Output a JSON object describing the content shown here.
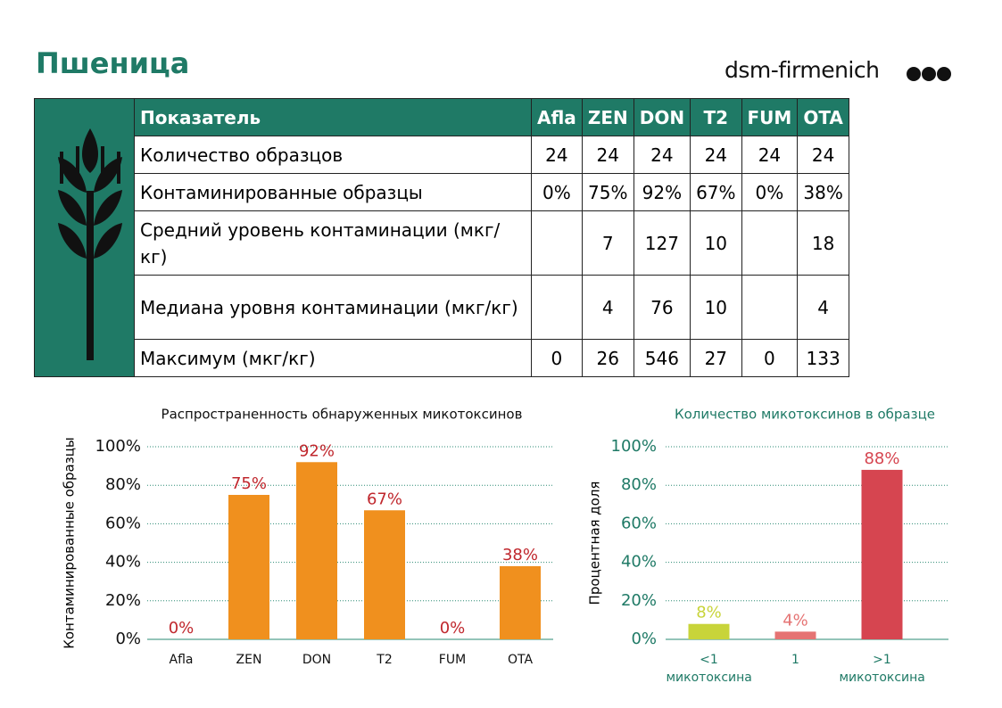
{
  "header": {
    "title": "Пшеница",
    "logo": "dsm-firmenich"
  },
  "table": {
    "header": [
      "Показатель",
      "Afla",
      "ZEN",
      "DON",
      "T2",
      "FUM",
      "OTA"
    ],
    "rows": [
      [
        "Количество образцов",
        "24",
        "24",
        "24",
        "24",
        "24",
        "24"
      ],
      [
        "Контаминированные образцы",
        "0%",
        "75%",
        "92%",
        "67%",
        "0%",
        "38%"
      ],
      [
        "Средний уровень контаминации (мкг/кг)",
        null,
        "7",
        "127",
        "10",
        null,
        "18"
      ],
      [
        "Медиана уровня контаминации (мкг/кг)",
        null,
        "4",
        "76",
        "10",
        null,
        "4"
      ],
      [
        "Максимум (мкг/кг)",
        "0",
        "26",
        "546",
        "27",
        "0",
        "133"
      ]
    ]
  },
  "chart_data": [
    {
      "type": "bar",
      "title": "Распространенность обнаруженных микотоксинов",
      "y_label": "Контаминированные образцы",
      "categories": [
        "Afla",
        "ZEN",
        "DON",
        "T2",
        "FUM",
        "OTA"
      ],
      "values": [
        0,
        75,
        92,
        67,
        0,
        38
      ],
      "value_labels": [
        "0%",
        "75%",
        "92%",
        "67%",
        "0%",
        "38%"
      ],
      "color": "#f0901e",
      "label_color": "#c0272d",
      "ylim": [
        0,
        100
      ],
      "yticks": [
        {
          "value": 0,
          "label": "0%"
        },
        {
          "value": 20,
          "label": "20%"
        },
        {
          "value": 40,
          "label": "40%"
        },
        {
          "value": 60,
          "label": "60%"
        },
        {
          "value": 80,
          "label": "80%"
        },
        {
          "value": 100,
          "label": "100%"
        }
      ],
      "grid": true
    },
    {
      "type": "bar",
      "title": "Количество микотоксинов в образце",
      "y_label": "Процентная доля",
      "categories": [
        "<1 микотоксина",
        "1",
        ">1 микотоксина"
      ],
      "values": [
        8,
        4,
        88
      ],
      "value_labels": [
        "8%",
        "4%",
        "88%"
      ],
      "colors": [
        "#c8d43a",
        "#e57373",
        "#d64550"
      ],
      "ylim": [
        0,
        100
      ],
      "yticks": [
        {
          "value": 0,
          "label": "0%"
        },
        {
          "value": 20,
          "label": "20%"
        },
        {
          "value": 40,
          "label": "40%"
        },
        {
          "value": 60,
          "label": "60%"
        },
        {
          "value": 80,
          "label": "80%"
        },
        {
          "value": 100,
          "label": "100%"
        }
      ],
      "grid": true
    }
  ]
}
